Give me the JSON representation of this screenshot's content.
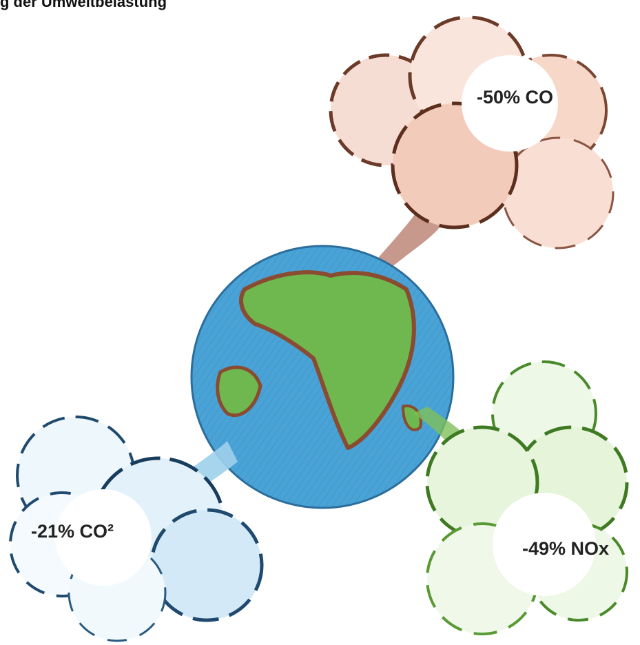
{
  "header": {
    "title": "g der Umweltbelastung"
  },
  "labels": [
    "-50% CO",
    "-21% CO²",
    "-49% NOx"
  ]
}
